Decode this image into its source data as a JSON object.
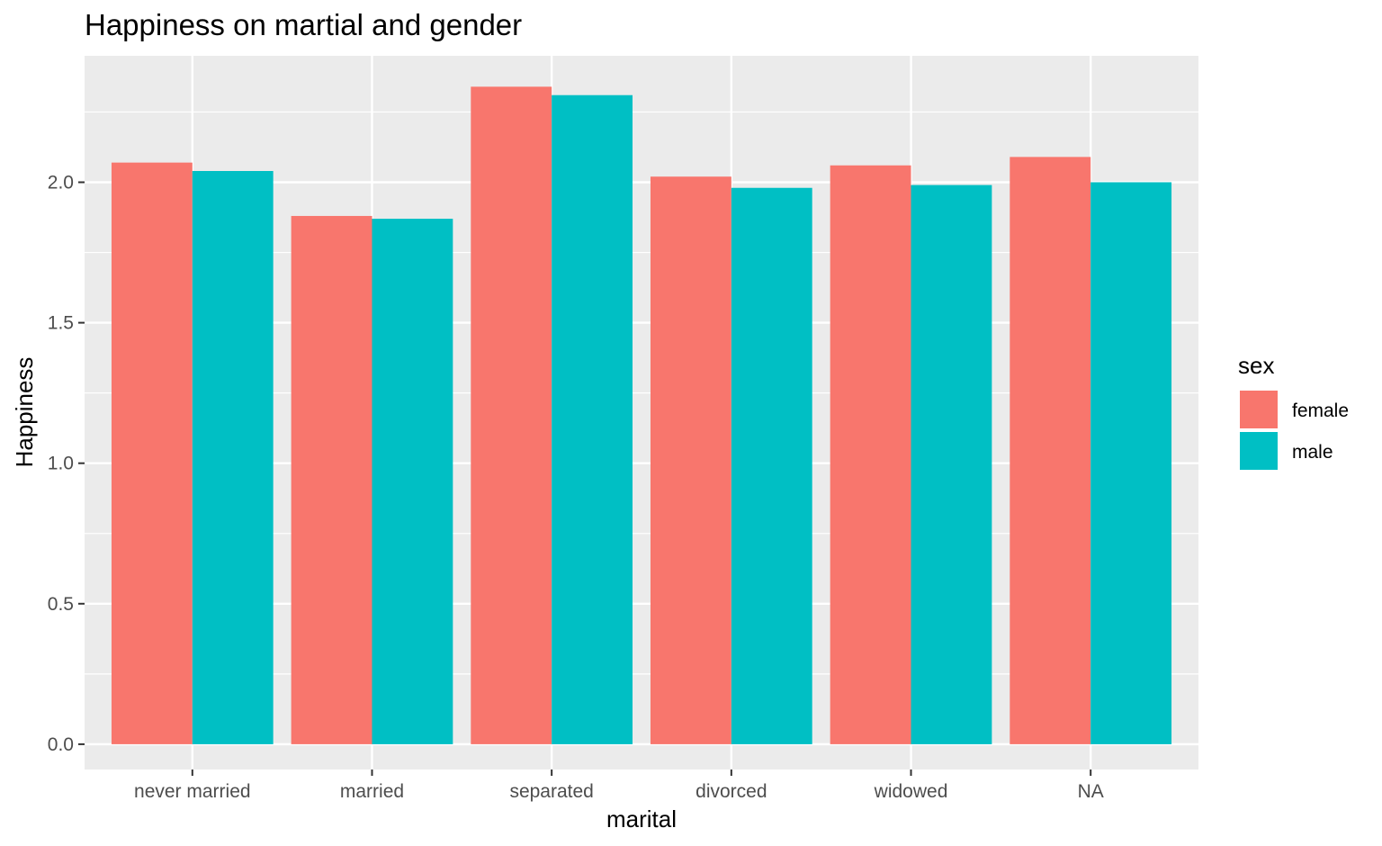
{
  "chart_data": {
    "type": "bar",
    "title": "Happiness on martial and gender",
    "xlabel": "marital",
    "ylabel": "Happiness",
    "categories": [
      "never married",
      "married",
      "separated",
      "divorced",
      "widowed",
      "NA"
    ],
    "series": [
      {
        "name": "female",
        "color": "#F8766D",
        "values": [
          2.07,
          1.88,
          2.34,
          2.02,
          2.06,
          2.09
        ]
      },
      {
        "name": "male",
        "color": "#00BFC4",
        "values": [
          2.04,
          1.87,
          2.31,
          1.98,
          1.99,
          2.0
        ]
      }
    ],
    "ylim": [
      -0.09,
      2.45
    ],
    "yticks": [
      0.0,
      0.5,
      1.0,
      1.5,
      2.0
    ],
    "ytick_labels": [
      "0.0",
      "0.5",
      "1.0",
      "1.5",
      "2.0"
    ],
    "grid": true,
    "legend": {
      "title": "sex",
      "position": "right"
    },
    "panel_background": "#EBEBEB",
    "grid_color": "#FFFFFF"
  }
}
